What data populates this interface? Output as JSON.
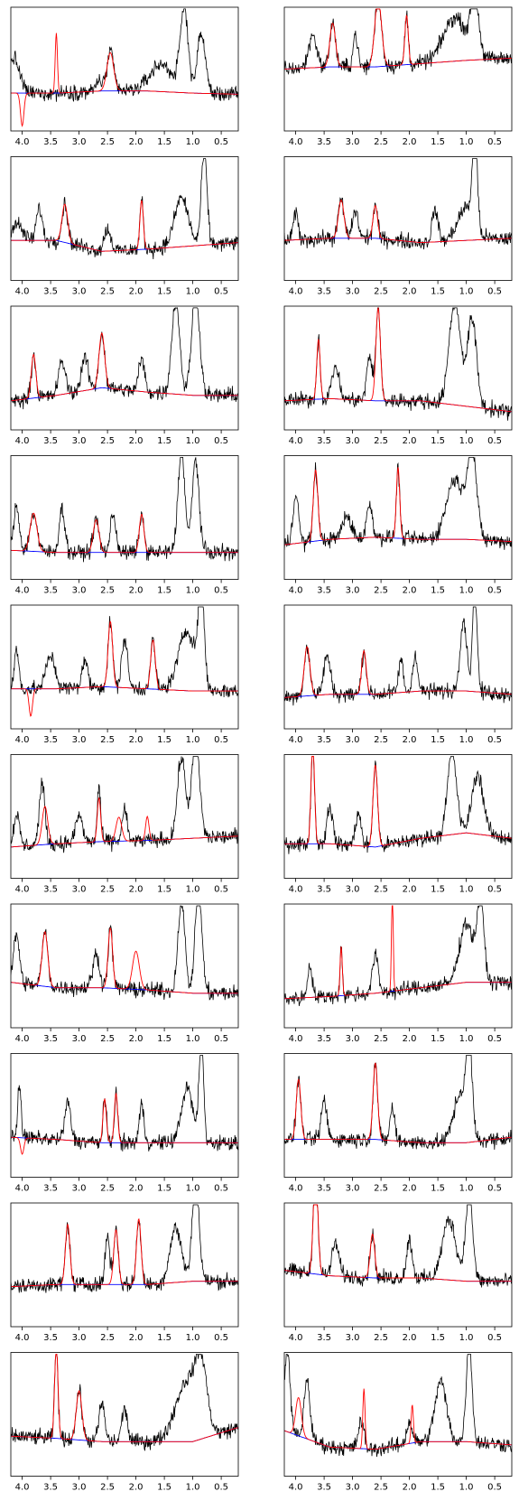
{
  "chart_data": {
    "type": "line",
    "layout": "10 rows x 2 columns of spectra panels",
    "x_axis": {
      "reversed": true,
      "xlim": [
        4.2,
        0.2
      ],
      "ticks": [
        4.0,
        3.5,
        3.0,
        2.5,
        2.0,
        1.5,
        1.0,
        0.5
      ],
      "tick_labels": [
        "4.0",
        "3.5",
        "3.0",
        "2.5",
        "2.0",
        "1.5",
        "1.0",
        "0.5"
      ]
    },
    "y_axis": {
      "visible": false,
      "ylim": [
        0,
        1
      ]
    },
    "grid": false,
    "series_colors": {
      "spectrum": "#000000",
      "fit": "#ff0000",
      "baseline": "#0000ff"
    },
    "panels": [
      {
        "id": 1,
        "peaks": [
          [
            4.15,
            0.32,
            0.1
          ],
          [
            2.45,
            0.35,
            0.06
          ],
          [
            2.65,
            0.1,
            0.05
          ],
          [
            1.15,
            0.75,
            0.07
          ],
          [
            0.85,
            0.55,
            0.07
          ],
          [
            1.55,
            0.25,
            0.2
          ]
        ],
        "baseline": [
          0.28,
          0.28,
          0.3,
          0.3,
          0.28,
          0.27
        ],
        "fit_peaks": [
          [
            3.4,
            0.55,
            0.02
          ],
          [
            2.45,
            0.35,
            0.06
          ],
          [
            4.0,
            -0.3,
            0.03
          ]
        ]
      },
      {
        "id": 2,
        "peaks": [
          [
            3.7,
            0.3,
            0.07
          ],
          [
            3.35,
            0.4,
            0.05
          ],
          [
            2.95,
            0.3,
            0.04
          ],
          [
            2.55,
            0.62,
            0.06
          ],
          [
            2.05,
            0.45,
            0.03
          ],
          [
            1.2,
            0.4,
            0.2
          ],
          [
            0.85,
            0.55,
            0.07
          ]
        ],
        "baseline": [
          0.5,
          0.52,
          0.52,
          0.55,
          0.58,
          0.6
        ],
        "fit_peaks": [
          [
            3.35,
            0.4,
            0.05
          ],
          [
            2.55,
            0.62,
            0.06
          ],
          [
            2.05,
            0.45,
            0.03
          ]
        ]
      },
      {
        "id": 3,
        "peaks": [
          [
            4.1,
            0.15,
            0.1
          ],
          [
            3.7,
            0.3,
            0.05
          ],
          [
            3.25,
            0.35,
            0.05
          ],
          [
            2.5,
            0.2,
            0.06
          ],
          [
            1.9,
            0.45,
            0.03
          ],
          [
            1.2,
            0.45,
            0.12
          ],
          [
            0.8,
            0.85,
            0.05
          ]
        ],
        "baseline": [
          0.3,
          0.3,
          0.2,
          0.22,
          0.25,
          0.28
        ],
        "fit_peaks": [
          [
            3.25,
            0.35,
            0.05
          ],
          [
            1.9,
            0.45,
            0.03
          ]
        ]
      },
      {
        "id": 4,
        "peaks": [
          [
            4.0,
            0.25,
            0.04
          ],
          [
            3.2,
            0.35,
            0.05
          ],
          [
            2.95,
            0.25,
            0.05
          ],
          [
            2.6,
            0.3,
            0.04
          ],
          [
            1.55,
            0.3,
            0.05
          ],
          [
            0.85,
            0.95,
            0.04
          ],
          [
            1.0,
            0.3,
            0.15
          ]
        ],
        "baseline": [
          0.3,
          0.32,
          0.32,
          0.28,
          0.3,
          0.32
        ],
        "fit_peaks": [
          [
            3.2,
            0.35,
            0.05
          ],
          [
            2.6,
            0.3,
            0.04
          ]
        ]
      },
      {
        "id": 5,
        "peaks": [
          [
            3.8,
            0.4,
            0.04
          ],
          [
            3.3,
            0.3,
            0.06
          ],
          [
            2.6,
            0.5,
            0.05
          ],
          [
            2.9,
            0.3,
            0.06
          ],
          [
            1.9,
            0.3,
            0.05
          ],
          [
            1.3,
            0.85,
            0.07
          ],
          [
            0.95,
            0.95,
            0.07
          ]
        ],
        "baseline": [
          0.2,
          0.25,
          0.32,
          0.28,
          0.25,
          0.25
        ],
        "fit_peaks": [
          [
            3.8,
            0.4,
            0.04
          ],
          [
            2.6,
            0.5,
            0.05
          ]
        ]
      },
      {
        "id": 6,
        "peaks": [
          [
            3.6,
            0.55,
            0.03
          ],
          [
            3.3,
            0.3,
            0.06
          ],
          [
            2.55,
            0.85,
            0.04
          ],
          [
            2.7,
            0.4,
            0.05
          ],
          [
            1.2,
            0.95,
            0.1
          ],
          [
            0.9,
            0.8,
            0.08
          ]
        ],
        "baseline": [
          0.2,
          0.22,
          0.2,
          0.2,
          0.15,
          0.1
        ],
        "fit_peaks": [
          [
            3.6,
            0.55,
            0.03
          ],
          [
            2.55,
            0.85,
            0.04
          ]
        ]
      },
      {
        "id": 7,
        "peaks": [
          [
            4.1,
            0.4,
            0.05
          ],
          [
            3.8,
            0.35,
            0.06
          ],
          [
            3.3,
            0.4,
            0.05
          ],
          [
            2.7,
            0.3,
            0.05
          ],
          [
            2.4,
            0.35,
            0.05
          ],
          [
            1.9,
            0.35,
            0.04
          ],
          [
            1.2,
            0.95,
            0.06
          ],
          [
            0.95,
            0.85,
            0.06
          ]
        ],
        "baseline": [
          0.2,
          0.18,
          0.18,
          0.18,
          0.18,
          0.18
        ],
        "fit_peaks": [
          [
            3.8,
            0.35,
            0.06
          ],
          [
            2.7,
            0.3,
            0.05
          ],
          [
            1.9,
            0.35,
            0.04
          ]
        ]
      },
      {
        "id": 8,
        "peaks": [
          [
            4.0,
            0.45,
            0.05
          ],
          [
            3.65,
            0.65,
            0.04
          ],
          [
            3.1,
            0.2,
            0.08
          ],
          [
            2.7,
            0.3,
            0.05
          ],
          [
            2.2,
            0.65,
            0.03
          ],
          [
            1.2,
            0.55,
            0.15
          ],
          [
            0.9,
            0.8,
            0.08
          ]
        ],
        "baseline": [
          0.25,
          0.3,
          0.32,
          0.3,
          0.3,
          0.28
        ],
        "fit_peaks": [
          [
            3.65,
            0.65,
            0.04
          ],
          [
            2.2,
            0.65,
            0.03
          ]
        ]
      },
      {
        "id": 9,
        "peaks": [
          [
            4.1,
            0.35,
            0.04
          ],
          [
            3.5,
            0.3,
            0.08
          ],
          [
            2.9,
            0.25,
            0.05
          ],
          [
            2.45,
            0.6,
            0.04
          ],
          [
            2.2,
            0.45,
            0.05
          ],
          [
            1.7,
            0.45,
            0.04
          ],
          [
            1.1,
            0.55,
            0.15
          ],
          [
            0.85,
            0.9,
            0.05
          ]
        ],
        "baseline": [
          0.3,
          0.3,
          0.32,
          0.3,
          0.28,
          0.28
        ],
        "fit_peaks": [
          [
            2.45,
            0.6,
            0.04
          ],
          [
            1.7,
            0.45,
            0.04
          ],
          [
            3.85,
            -0.25,
            0.03
          ]
        ]
      },
      {
        "id": 10,
        "peaks": [
          [
            3.8,
            0.45,
            0.05
          ],
          [
            3.45,
            0.35,
            0.06
          ],
          [
            2.8,
            0.4,
            0.04
          ],
          [
            2.15,
            0.3,
            0.04
          ],
          [
            1.9,
            0.35,
            0.04
          ],
          [
            1.05,
            0.65,
            0.06
          ],
          [
            0.85,
            0.95,
            0.04
          ]
        ],
        "baseline": [
          0.22,
          0.25,
          0.25,
          0.28,
          0.28,
          0.25
        ],
        "fit_peaks": [
          [
            3.8,
            0.45,
            0.05
          ],
          [
            2.8,
            0.4,
            0.04
          ]
        ]
      },
      {
        "id": 11,
        "peaks": [
          [
            4.1,
            0.3,
            0.05
          ],
          [
            3.65,
            0.55,
            0.05
          ],
          [
            2.65,
            0.5,
            0.03
          ],
          [
            3.0,
            0.25,
            0.06
          ],
          [
            2.2,
            0.3,
            0.04
          ],
          [
            1.2,
            0.75,
            0.07
          ],
          [
            0.95,
            0.9,
            0.07
          ]
        ],
        "baseline": [
          0.22,
          0.25,
          0.27,
          0.28,
          0.3,
          0.32
        ],
        "fit_peaks": [
          [
            3.6,
            0.35,
            0.05
          ],
          [
            2.65,
            0.4,
            0.03
          ],
          [
            2.3,
            0.22,
            0.05
          ],
          [
            1.8,
            0.22,
            0.03
          ]
        ]
      },
      {
        "id": 12,
        "peaks": [
          [
            3.7,
            0.95,
            0.03
          ],
          [
            3.4,
            0.35,
            0.05
          ],
          [
            2.6,
            0.75,
            0.04
          ],
          [
            2.9,
            0.3,
            0.05
          ],
          [
            1.25,
            0.75,
            0.08
          ],
          [
            0.8,
            0.55,
            0.1
          ]
        ],
        "baseline": [
          0.25,
          0.25,
          0.22,
          0.3,
          0.35,
          0.3
        ],
        "fit_peaks": [
          [
            3.7,
            0.95,
            0.03
          ],
          [
            2.6,
            0.75,
            0.04
          ]
        ]
      },
      {
        "id": 13,
        "peaks": [
          [
            4.1,
            0.45,
            0.05
          ],
          [
            3.6,
            0.5,
            0.05
          ],
          [
            2.45,
            0.55,
            0.04
          ],
          [
            2.7,
            0.3,
            0.06
          ],
          [
            1.2,
            0.85,
            0.06
          ],
          [
            0.9,
            0.95,
            0.06
          ]
        ],
        "baseline": [
          0.35,
          0.3,
          0.3,
          0.28,
          0.25,
          0.25
        ],
        "fit_peaks": [
          [
            3.6,
            0.5,
            0.05
          ],
          [
            2.45,
            0.55,
            0.04
          ],
          [
            2.0,
            0.35,
            0.06
          ]
        ]
      },
      {
        "id": 14,
        "peaks": [
          [
            3.75,
            0.3,
            0.04
          ],
          [
            3.2,
            0.45,
            0.02
          ],
          [
            2.6,
            0.35,
            0.05
          ],
          [
            1.0,
            0.55,
            0.12
          ],
          [
            0.75,
            0.75,
            0.06
          ]
        ],
        "baseline": [
          0.2,
          0.22,
          0.25,
          0.3,
          0.35,
          0.35
        ],
        "fit_peaks": [
          [
            2.3,
            0.95,
            0.015
          ],
          [
            3.2,
            0.45,
            0.02
          ]
        ]
      },
      {
        "id": 15,
        "peaks": [
          [
            4.05,
            0.5,
            0.03
          ],
          [
            3.2,
            0.35,
            0.05
          ],
          [
            2.55,
            0.4,
            0.03
          ],
          [
            2.35,
            0.45,
            0.03
          ],
          [
            1.9,
            0.35,
            0.04
          ],
          [
            1.1,
            0.5,
            0.1
          ],
          [
            0.85,
            0.95,
            0.04
          ]
        ],
        "baseline": [
          0.3,
          0.28,
          0.25,
          0.25,
          0.25,
          0.25
        ],
        "fit_peaks": [
          [
            2.35,
            0.45,
            0.03
          ],
          [
            2.55,
            0.4,
            0.03
          ],
          [
            4.0,
            -0.15,
            0.03
          ]
        ]
      },
      {
        "id": 16,
        "peaks": [
          [
            3.95,
            0.55,
            0.04
          ],
          [
            3.5,
            0.35,
            0.05
          ],
          [
            2.6,
            0.7,
            0.04
          ],
          [
            2.3,
            0.3,
            0.04
          ],
          [
            1.1,
            0.45,
            0.12
          ],
          [
            0.95,
            0.85,
            0.05
          ]
        ],
        "baseline": [
          0.28,
          0.28,
          0.28,
          0.25,
          0.25,
          0.3
        ],
        "fit_peaks": [
          [
            3.95,
            0.55,
            0.04
          ],
          [
            2.6,
            0.7,
            0.04
          ]
        ]
      },
      {
        "id": 17,
        "peaks": [
          [
            3.2,
            0.55,
            0.04
          ],
          [
            2.5,
            0.45,
            0.04
          ],
          [
            2.35,
            0.5,
            0.04
          ],
          [
            1.95,
            0.6,
            0.04
          ],
          [
            1.3,
            0.5,
            0.1
          ],
          [
            0.95,
            0.95,
            0.06
          ]
        ],
        "baseline": [
          0.3,
          0.32,
          0.32,
          0.32,
          0.35,
          0.35
        ],
        "fit_peaks": [
          [
            3.2,
            0.55,
            0.04
          ],
          [
            1.95,
            0.6,
            0.04
          ],
          [
            2.35,
            0.5,
            0.04
          ]
        ]
      },
      {
        "id": 18,
        "peaks": [
          [
            3.65,
            0.95,
            0.04
          ],
          [
            3.3,
            0.3,
            0.06
          ],
          [
            2.65,
            0.4,
            0.04
          ],
          [
            2.0,
            0.35,
            0.05
          ],
          [
            1.3,
            0.55,
            0.12
          ],
          [
            0.95,
            0.85,
            0.06
          ]
        ],
        "baseline": [
          0.45,
          0.4,
          0.38,
          0.38,
          0.35,
          0.35
        ],
        "fit_peaks": [
          [
            3.65,
            0.95,
            0.04
          ],
          [
            2.65,
            0.4,
            0.04
          ]
        ]
      },
      {
        "id": 19,
        "peaks": [
          [
            3.4,
            0.85,
            0.03
          ],
          [
            3.0,
            0.45,
            0.05
          ],
          [
            2.6,
            0.35,
            0.05
          ],
          [
            2.2,
            0.3,
            0.05
          ],
          [
            1.1,
            0.55,
            0.2
          ],
          [
            0.85,
            0.55,
            0.1
          ]
        ],
        "baseline": [
          0.3,
          0.28,
          0.25,
          0.25,
          0.25,
          0.38
        ],
        "fit_peaks": [
          [
            3.4,
            0.85,
            0.03
          ],
          [
            3.0,
            0.45,
            0.05
          ]
        ]
      },
      {
        "id": 20,
        "peaks": [
          [
            4.15,
            0.75,
            0.05
          ],
          [
            3.8,
            0.55,
            0.05
          ],
          [
            2.85,
            0.25,
            0.05
          ],
          [
            2.0,
            0.2,
            0.05
          ],
          [
            1.45,
            0.55,
            0.1
          ],
          [
            0.95,
            0.95,
            0.05
          ]
        ],
        "baseline": [
          0.35,
          0.2,
          0.18,
          0.25,
          0.25,
          0.22
        ],
        "fit_peaks": [
          [
            2.8,
            0.55,
            0.02
          ],
          [
            1.95,
            0.35,
            0.02
          ],
          [
            3.95,
            0.35,
            0.05
          ]
        ]
      }
    ]
  }
}
